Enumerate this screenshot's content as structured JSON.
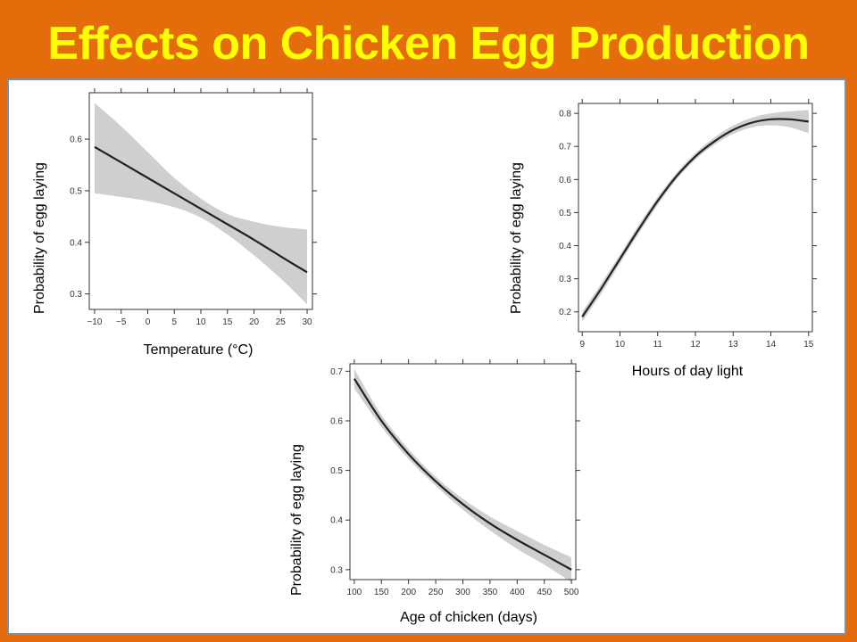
{
  "slide": {
    "title": "Effects on Chicken Egg Production",
    "background_color": "#e46c0a",
    "title_color": "#ffff00"
  },
  "chart_data": [
    {
      "type": "line",
      "name": "temperature",
      "xlabel": "Temperature (°C)",
      "ylabel": "Probability of egg laying",
      "xlim": [
        -11,
        31
      ],
      "ylim": [
        0.27,
        0.69
      ],
      "xticks": [
        -10,
        -5,
        0,
        5,
        10,
        15,
        20,
        25,
        30
      ],
      "xtick_labels": [
        "−10",
        "−5",
        "0",
        "5",
        "10",
        "15",
        "20",
        "25",
        "30"
      ],
      "yticks": [
        0.3,
        0.4,
        0.5,
        0.6
      ],
      "ytick_labels": [
        "0.3",
        "0.4",
        "0.5",
        "0.6"
      ],
      "band": true,
      "series": [
        {
          "x": [
            -10,
            -5,
            0,
            5,
            10,
            15,
            20,
            25,
            30
          ],
          "y": [
            0.585,
            0.555,
            0.525,
            0.495,
            0.465,
            0.435,
            0.405,
            0.373,
            0.342
          ],
          "lower": [
            0.495,
            0.488,
            0.48,
            0.468,
            0.448,
            0.415,
            0.375,
            0.33,
            0.28
          ],
          "upper": [
            0.67,
            0.625,
            0.575,
            0.525,
            0.485,
            0.455,
            0.44,
            0.43,
            0.425
          ]
        }
      ]
    },
    {
      "type": "line",
      "name": "daylight",
      "xlabel": "Hours of day light",
      "ylabel": "Probability of egg laying",
      "xlim": [
        8.9,
        15.1
      ],
      "ylim": [
        0.14,
        0.83
      ],
      "xticks": [
        9,
        10,
        11,
        12,
        13,
        14,
        15
      ],
      "xtick_labels": [
        "9",
        "10",
        "11",
        "12",
        "13",
        "14",
        "15"
      ],
      "yticks": [
        0.2,
        0.3,
        0.4,
        0.5,
        0.6,
        0.7,
        0.8
      ],
      "ytick_labels": [
        "0.2",
        "0.3",
        "0.4",
        "0.5",
        "0.6",
        "0.7",
        "0.8"
      ],
      "band": true,
      "series": [
        {
          "x": [
            9,
            9.5,
            10,
            10.5,
            11,
            11.5,
            12,
            12.5,
            13,
            13.5,
            14,
            14.5,
            15
          ],
          "y": [
            0.185,
            0.27,
            0.36,
            0.45,
            0.535,
            0.61,
            0.67,
            0.715,
            0.75,
            0.772,
            0.782,
            0.782,
            0.775
          ],
          "lower": [
            0.17,
            0.255,
            0.347,
            0.437,
            0.523,
            0.6,
            0.66,
            0.705,
            0.738,
            0.758,
            0.764,
            0.758,
            0.74
          ],
          "upper": [
            0.2,
            0.285,
            0.373,
            0.463,
            0.547,
            0.62,
            0.68,
            0.727,
            0.763,
            0.787,
            0.8,
            0.806,
            0.81
          ]
        }
      ]
    },
    {
      "type": "line",
      "name": "age",
      "xlabel": "Age of chicken (days)",
      "ylabel": "Probability of egg laying",
      "xlim": [
        92,
        508
      ],
      "ylim": [
        0.28,
        0.715
      ],
      "xticks": [
        100,
        150,
        200,
        250,
        300,
        350,
        400,
        450,
        500
      ],
      "xtick_labels": [
        "100",
        "150",
        "200",
        "250",
        "300",
        "350",
        "400",
        "450",
        "500"
      ],
      "yticks": [
        0.3,
        0.4,
        0.5,
        0.6,
        0.7
      ],
      "ytick_labels": [
        "0.3",
        "0.4",
        "0.5",
        "0.6",
        "0.7"
      ],
      "band": true,
      "series": [
        {
          "x": [
            100,
            150,
            200,
            250,
            300,
            350,
            400,
            450,
            500
          ],
          "y": [
            0.685,
            0.6,
            0.533,
            0.478,
            0.432,
            0.393,
            0.36,
            0.33,
            0.3
          ],
          "lower": [
            0.665,
            0.588,
            0.523,
            0.469,
            0.421,
            0.379,
            0.342,
            0.31,
            0.275
          ],
          "upper": [
            0.705,
            0.612,
            0.543,
            0.487,
            0.443,
            0.407,
            0.378,
            0.35,
            0.325
          ]
        }
      ]
    }
  ]
}
